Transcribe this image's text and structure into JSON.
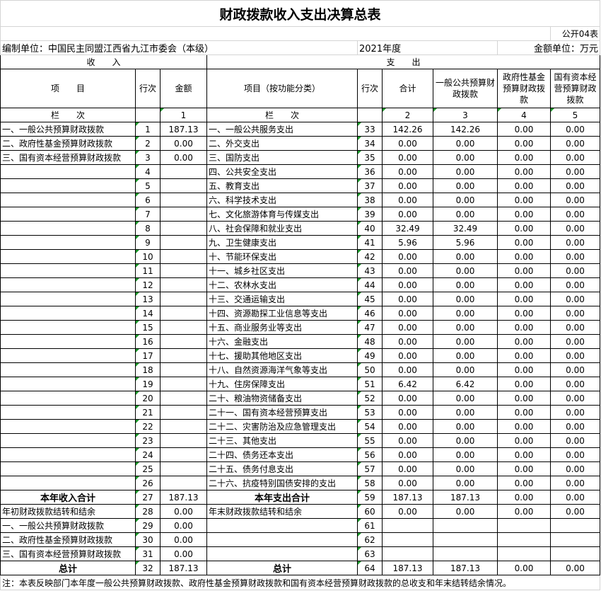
{
  "title": "财政拨款收入支出决算总表",
  "form_code": "公开04表",
  "unit_label": "编制单位：中国民主同盟江西省九江市委会（本级）",
  "year": "2021年度",
  "currency_label": "金额单位：万元",
  "income_header": "收　　入",
  "expense_header": "支　　出",
  "columns": {
    "item": "项　　目",
    "row_no": "行次",
    "amount": "金额",
    "func_item": "项目（按功能分类）",
    "row_no2": "行次",
    "total": "合计",
    "general": "一般公共预算财政拨款",
    "gov_fund": "政府性基金预算财政拨款",
    "state_capital": "国有资本经营预算财政拨款"
  },
  "col_index": {
    "label": "栏　　次",
    "c1": "1",
    "label2": "栏　　次",
    "c2": "2",
    "c3": "3",
    "c4": "4",
    "c5": "5"
  },
  "rows": [
    [
      "一、一般公共预算财政拨款",
      "1",
      "187.13",
      "一、一般公共服务支出",
      "33",
      "142.26",
      "142.26",
      "0.00",
      "0.00"
    ],
    [
      "二、政府性基金预算财政拨款",
      "2",
      "0.00",
      "二、外交支出",
      "34",
      "0.00",
      "0.00",
      "0.00",
      "0.00"
    ],
    [
      "三、国有资本经营预算财政拨款",
      "3",
      "0.00",
      "三、国防支出",
      "35",
      "0.00",
      "0.00",
      "0.00",
      "0.00"
    ],
    [
      "",
      "4",
      "",
      "四、公共安全支出",
      "36",
      "0.00",
      "0.00",
      "0.00",
      "0.00"
    ],
    [
      "",
      "5",
      "",
      "五、教育支出",
      "37",
      "0.00",
      "0.00",
      "0.00",
      "0.00"
    ],
    [
      "",
      "6",
      "",
      "六、科学技术支出",
      "38",
      "0.00",
      "0.00",
      "0.00",
      "0.00"
    ],
    [
      "",
      "7",
      "",
      "七、文化旅游体育与传媒支出",
      "39",
      "0.00",
      "0.00",
      "0.00",
      "0.00"
    ],
    [
      "",
      "8",
      "",
      "八、社会保障和就业支出",
      "40",
      "32.49",
      "32.49",
      "0.00",
      "0.00"
    ],
    [
      "",
      "9",
      "",
      "九、卫生健康支出",
      "41",
      "5.96",
      "5.96",
      "0.00",
      "0.00"
    ],
    [
      "",
      "10",
      "",
      "十、节能环保支出",
      "42",
      "0.00",
      "0.00",
      "0.00",
      "0.00"
    ],
    [
      "",
      "11",
      "",
      "十一、城乡社区支出",
      "43",
      "0.00",
      "0.00",
      "0.00",
      "0.00"
    ],
    [
      "",
      "12",
      "",
      "十二、农林水支出",
      "44",
      "0.00",
      "0.00",
      "0.00",
      "0.00"
    ],
    [
      "",
      "13",
      "",
      "十三、交通运输支出",
      "45",
      "0.00",
      "0.00",
      "0.00",
      "0.00"
    ],
    [
      "",
      "14",
      "",
      "十四、资源勘探工业信息等支出",
      "46",
      "0.00",
      "0.00",
      "0.00",
      "0.00"
    ],
    [
      "",
      "15",
      "",
      "十五、商业服务业等支出",
      "47",
      "0.00",
      "0.00",
      "0.00",
      "0.00"
    ],
    [
      "",
      "16",
      "",
      "十六、金融支出",
      "48",
      "0.00",
      "0.00",
      "0.00",
      "0.00"
    ],
    [
      "",
      "17",
      "",
      "十七、援助其他地区支出",
      "49",
      "0.00",
      "0.00",
      "0.00",
      "0.00"
    ],
    [
      "",
      "18",
      "",
      "十八、自然资源海洋气象等支出",
      "50",
      "0.00",
      "0.00",
      "0.00",
      "0.00"
    ],
    [
      "",
      "19",
      "",
      "十九、住房保障支出",
      "51",
      "6.42",
      "6.42",
      "0.00",
      "0.00"
    ],
    [
      "",
      "20",
      "",
      "二十、粮油物资储备支出",
      "52",
      "0.00",
      "0.00",
      "0.00",
      "0.00"
    ],
    [
      "",
      "21",
      "",
      "二十一、国有资本经营预算支出",
      "53",
      "0.00",
      "0.00",
      "0.00",
      "0.00"
    ],
    [
      "",
      "22",
      "",
      "二十二、灾害防治及应急管理支出",
      "54",
      "0.00",
      "0.00",
      "0.00",
      "0.00"
    ],
    [
      "",
      "23",
      "",
      "二十三、其他支出",
      "55",
      "0.00",
      "0.00",
      "0.00",
      "0.00"
    ],
    [
      "",
      "24",
      "",
      "二十四、债务还本支出",
      "56",
      "0.00",
      "0.00",
      "0.00",
      "0.00"
    ],
    [
      "",
      "25",
      "",
      "二十五、债务付息支出",
      "57",
      "0.00",
      "0.00",
      "0.00",
      "0.00"
    ],
    [
      "",
      "26",
      "",
      "二十六、抗疫特别国债安排的支出",
      "58",
      "0.00",
      "0.00",
      "0.00",
      "0.00"
    ],
    [
      "本年收入合计",
      "27",
      "187.13",
      "本年支出合计",
      "59",
      "187.13",
      "187.13",
      "0.00",
      "0.00"
    ],
    [
      "年初财政拨款结转和结余",
      "28",
      "0.00",
      "年末财政拨款结转和结余",
      "60",
      "0.00",
      "0.00",
      "0.00",
      "0.00"
    ],
    [
      "一、一般公共预算财政拨款",
      "29",
      "0.00",
      "",
      "61",
      "",
      "",
      "",
      ""
    ],
    [
      "二、政府性基金预算财政拨款",
      "30",
      "0.00",
      "",
      "62",
      "",
      "",
      "",
      ""
    ],
    [
      "三、国有资本经营预算财政拨款",
      "31",
      "0.00",
      "",
      "63",
      "",
      "",
      "",
      ""
    ],
    [
      "总计",
      "32",
      "187.13",
      "总计",
      "64",
      "187.13",
      "187.13",
      "0.00",
      "0.00"
    ]
  ],
  "bold_rows": [
    26,
    31
  ],
  "note": "注：本表反映部门本年度一般公共预算财政拨款、政府性基金预算财政拨款和国有资本经营预算财政拨款的总收支和年末结转结余情况。"
}
